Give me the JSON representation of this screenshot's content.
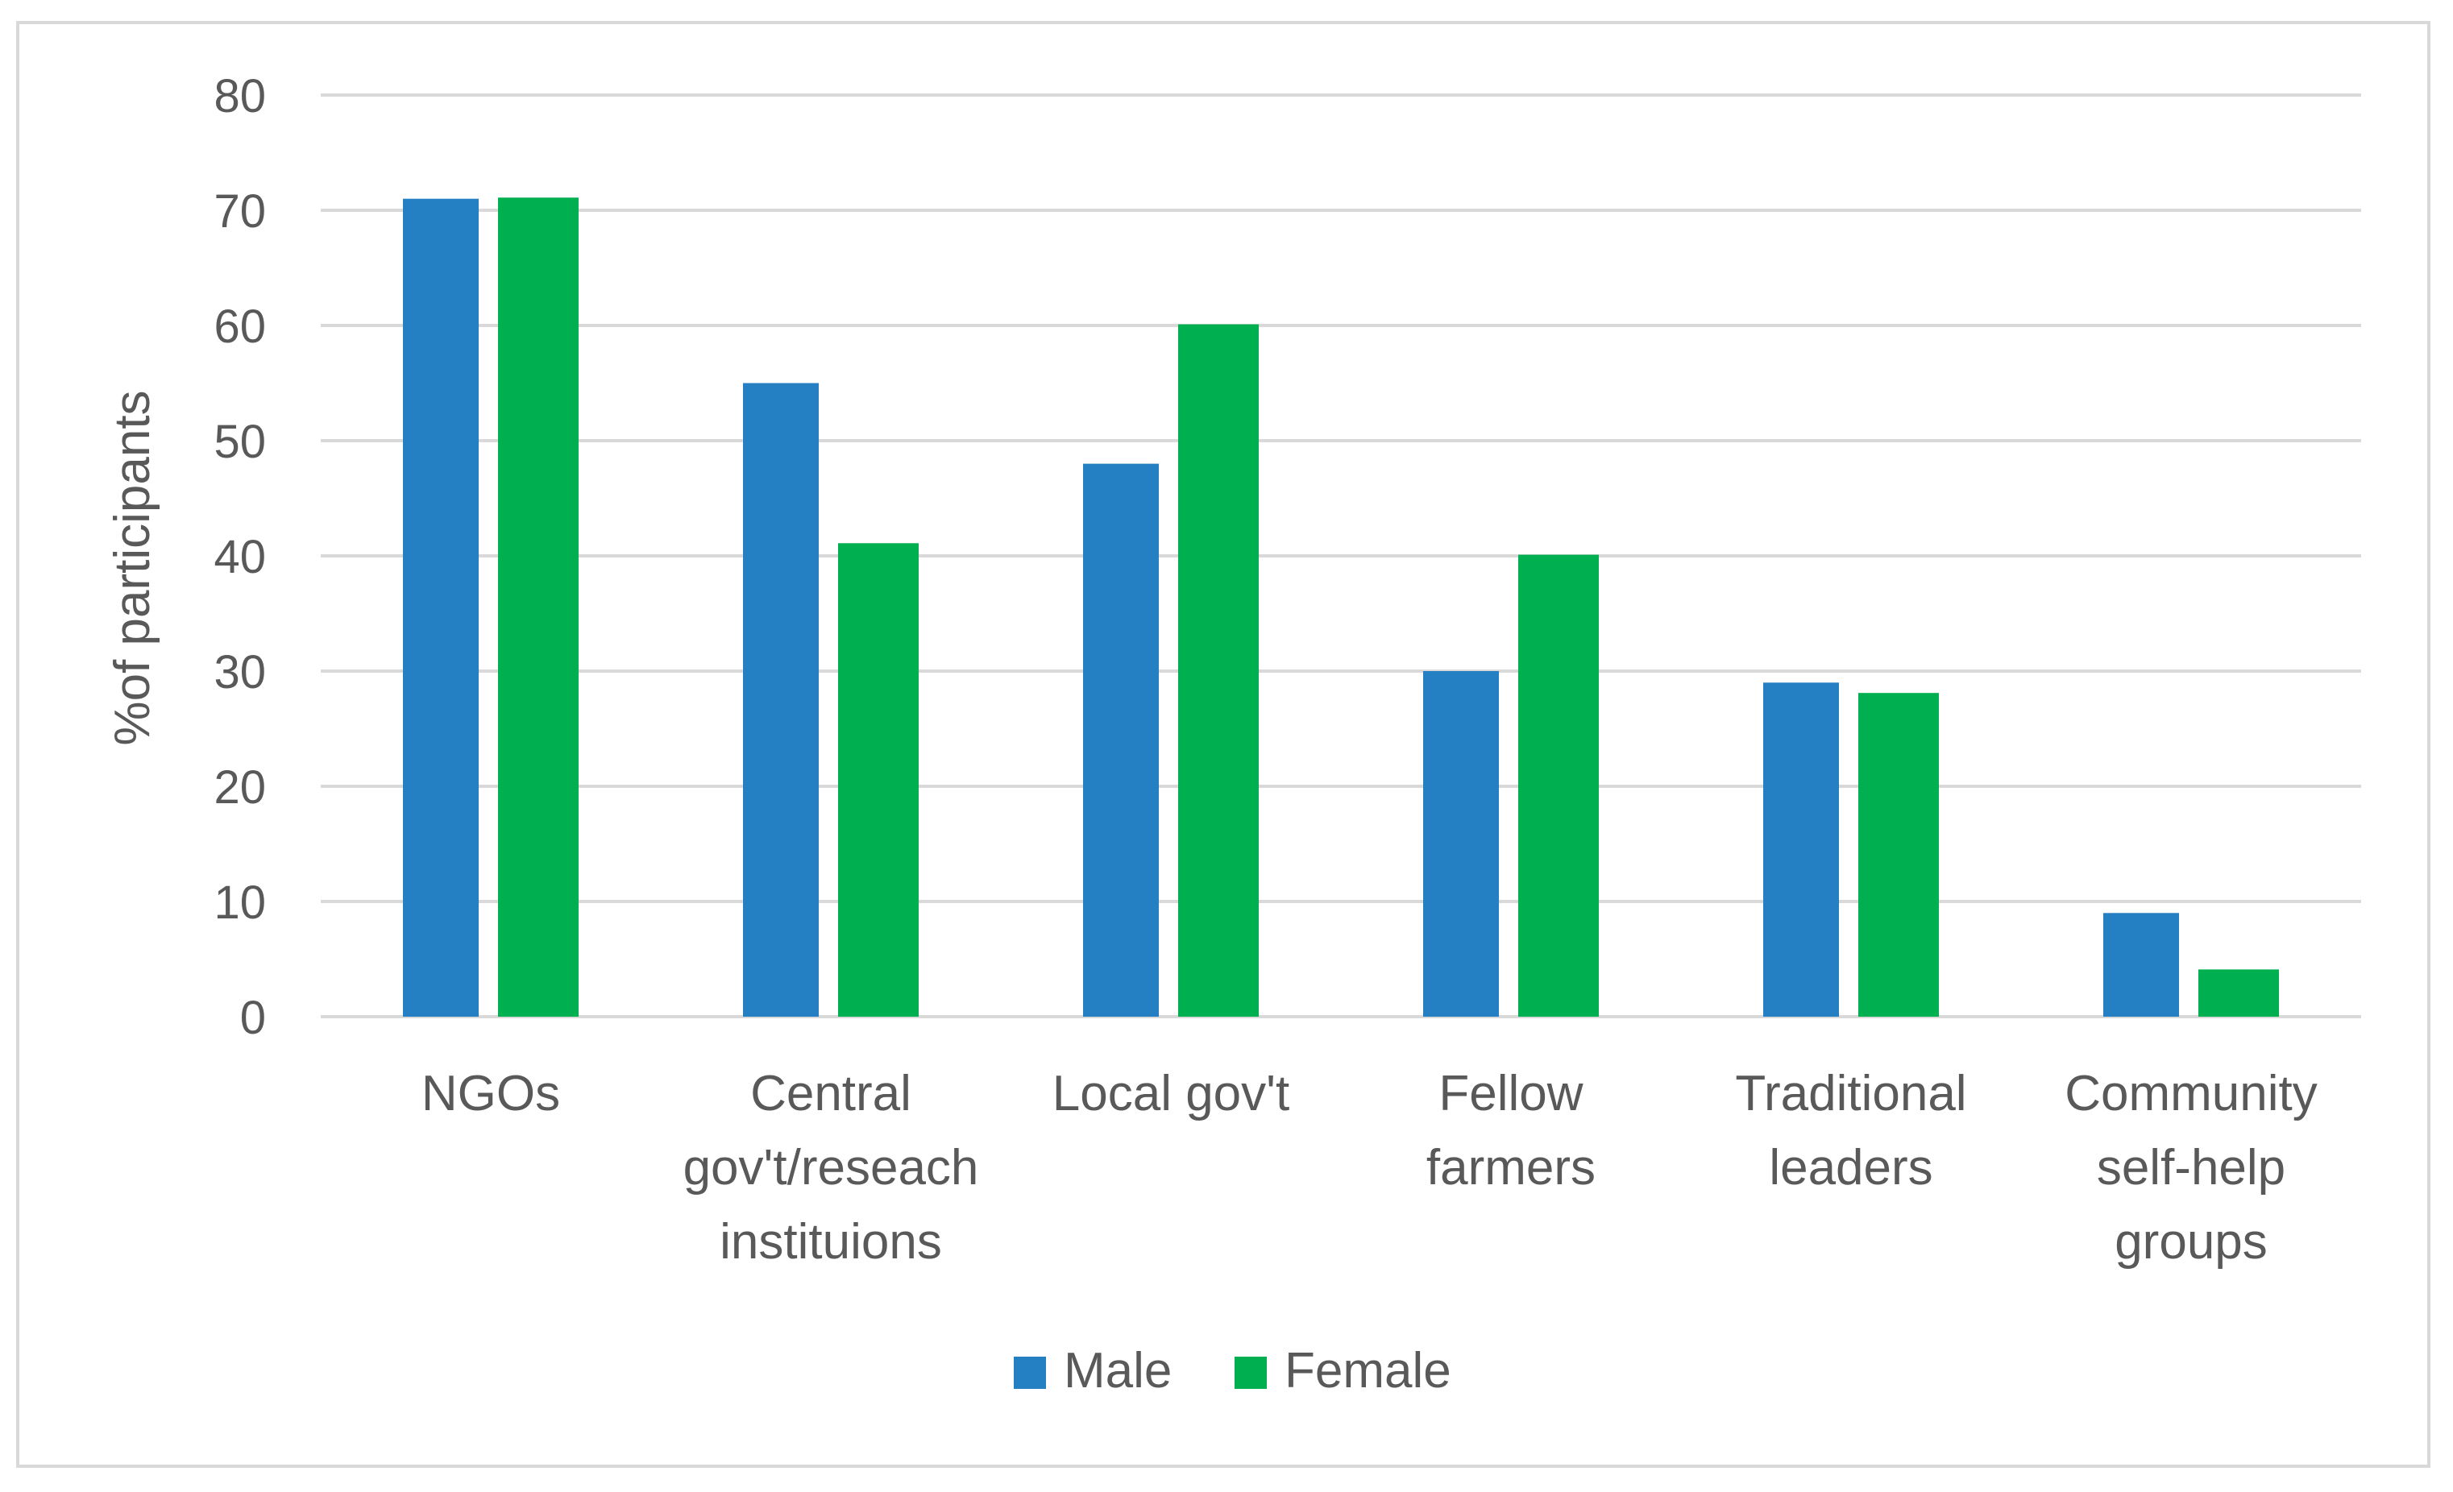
{
  "chart_data": {
    "type": "bar",
    "categories": [
      [
        "NGOs"
      ],
      [
        "Central",
        "gov't/reseach",
        "instituions"
      ],
      [
        "Local gov't"
      ],
      [
        "Fellow",
        "farmers"
      ],
      [
        "Traditional",
        "leaders"
      ],
      [
        "Community",
        "self-help",
        "groups"
      ]
    ],
    "series": [
      {
        "name": "Male",
        "color": "#2580c3",
        "values": [
          71,
          55,
          48,
          30,
          29,
          9
        ]
      },
      {
        "name": "Female",
        "color": "#00b050",
        "values": [
          71.1,
          41.1,
          60.1,
          40.1,
          28.1,
          4.1
        ]
      }
    ],
    "ylabel": "%of participants",
    "ylim": [
      0,
      80
    ],
    "yticks": [
      0,
      10,
      20,
      30,
      40,
      50,
      60,
      70,
      80
    ],
    "grid": true,
    "gridColor": "#d9d9d9",
    "legend": "bottom"
  }
}
